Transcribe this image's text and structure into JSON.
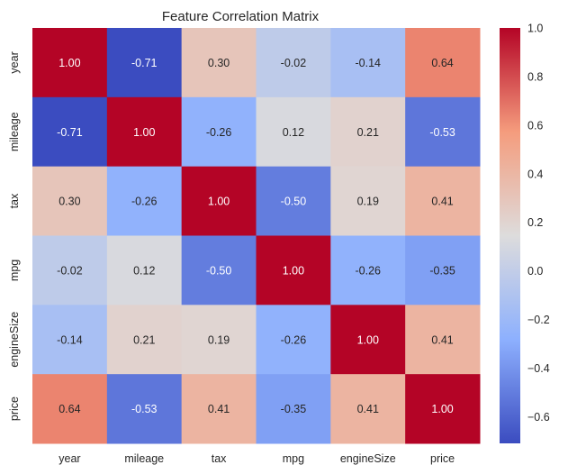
{
  "chart_data": {
    "type": "heatmap",
    "title": "Feature Correlation Matrix",
    "xlabel": "",
    "ylabel": "",
    "x_categories": [
      "year",
      "mileage",
      "tax",
      "mpg",
      "engineSize",
      "price"
    ],
    "y_categories": [
      "year",
      "mileage",
      "tax",
      "mpg",
      "engineSize",
      "price"
    ],
    "values": [
      [
        1.0,
        -0.71,
        0.3,
        -0.02,
        -0.14,
        0.64
      ],
      [
        -0.71,
        1.0,
        -0.26,
        0.12,
        0.21,
        -0.53
      ],
      [
        0.3,
        -0.26,
        1.0,
        -0.5,
        0.19,
        0.41
      ],
      [
        -0.02,
        0.12,
        -0.5,
        1.0,
        -0.26,
        -0.35
      ],
      [
        -0.14,
        0.21,
        0.19,
        -0.26,
        1.0,
        0.41
      ],
      [
        0.64,
        -0.53,
        0.41,
        -0.35,
        0.41,
        1.0
      ]
    ],
    "annotation_format": "0.00",
    "colormap": "coolwarm",
    "color_range": [
      -0.71,
      1.0
    ],
    "colorbar": {
      "ticks": [
        -0.6,
        -0.4,
        -0.2,
        0.0,
        0.2,
        0.4,
        0.6,
        0.8,
        1.0
      ],
      "tick_labels": [
        "−0.6",
        "−0.4",
        "−0.2",
        "0.0",
        "0.2",
        "0.4",
        "0.6",
        "0.8",
        "1.0"
      ],
      "placement": "right"
    },
    "grid": false
  }
}
